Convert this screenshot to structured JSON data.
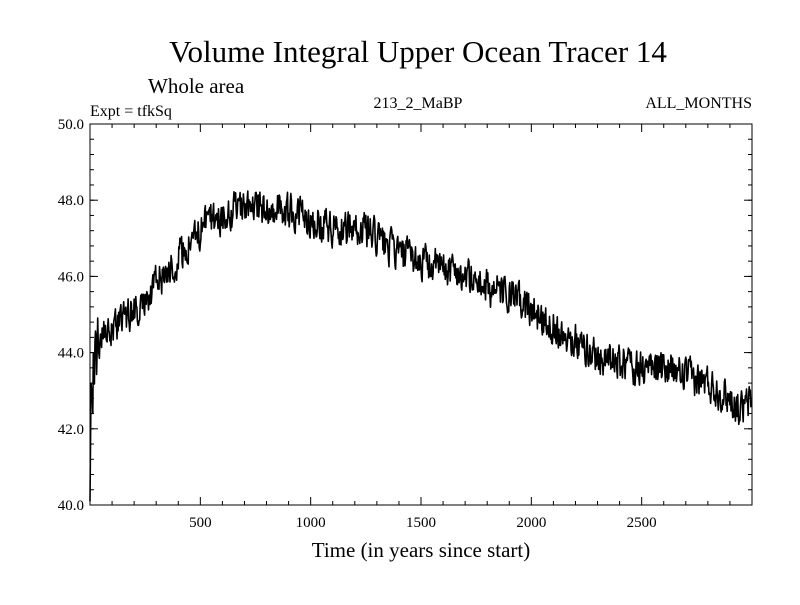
{
  "chart_data": {
    "type": "line",
    "title": "Volume Integral Upper Ocean Tracer 14",
    "subtitle": "Whole area",
    "annotations": {
      "experiment": "Expt = tfkSq",
      "run": "213_2_MaBP",
      "months": "ALL_MONTHS"
    },
    "xlabel": "Time (in years since start)",
    "ylabel": "",
    "xlim": [
      0,
      3000
    ],
    "ylim": [
      40.0,
      50.0
    ],
    "x_ticks": [
      500,
      1000,
      1500,
      2000,
      2500
    ],
    "x_tick_labels": [
      "500",
      "1000",
      "1500",
      "2000",
      "2500"
    ],
    "y_ticks": [
      40.0,
      42.0,
      44.0,
      46.0,
      48.0,
      50.0
    ],
    "y_tick_labels": [
      "40.0",
      "42.0",
      "44.0",
      "46.0",
      "48.0",
      "50.0"
    ],
    "grid": false,
    "legend": "none",
    "series": [
      {
        "name": "Tracer 14 volume integral",
        "x": [
          0,
          10,
          25,
          50,
          100,
          150,
          200,
          250,
          300,
          350,
          400,
          450,
          500,
          550,
          600,
          650,
          700,
          750,
          800,
          850,
          900,
          950,
          1000,
          1050,
          1100,
          1150,
          1200,
          1250,
          1300,
          1350,
          1400,
          1450,
          1500,
          1550,
          1600,
          1650,
          1700,
          1750,
          1800,
          1850,
          1900,
          1950,
          2000,
          2050,
          2100,
          2150,
          2200,
          2250,
          2300,
          2350,
          2400,
          2450,
          2500,
          2550,
          2600,
          2650,
          2700,
          2750,
          2800,
          2850,
          2900,
          2950,
          2995
        ],
        "values": [
          41.0,
          43.5,
          44.1,
          44.4,
          44.6,
          44.9,
          45.1,
          45.4,
          45.8,
          46.2,
          46.5,
          46.8,
          47.2,
          47.5,
          47.6,
          47.7,
          47.8,
          47.8,
          47.8,
          47.8,
          47.7,
          47.6,
          47.5,
          47.4,
          47.3,
          47.3,
          47.3,
          47.2,
          47.0,
          46.8,
          46.6,
          46.5,
          46.4,
          46.3,
          46.2,
          46.2,
          46.0,
          45.9,
          45.7,
          45.6,
          45.5,
          45.3,
          45.1,
          44.9,
          44.7,
          44.5,
          44.3,
          44.1,
          43.9,
          43.8,
          43.7,
          43.7,
          43.6,
          43.6,
          43.6,
          43.5,
          43.4,
          43.3,
          43.2,
          43.0,
          42.8,
          42.5,
          42.7
        ]
      }
    ],
    "line_color": "#000000"
  }
}
